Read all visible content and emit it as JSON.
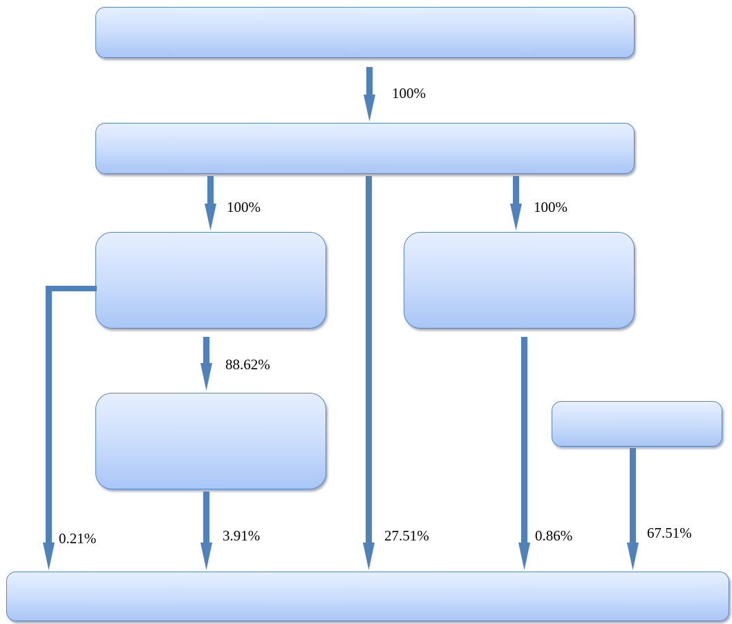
{
  "diagram": {
    "boxes": {
      "top": "",
      "second": "",
      "mid_left": "",
      "mid_right": "",
      "lower_left": "",
      "side_right": "",
      "bottom": ""
    },
    "labels": {
      "top_to_second": "100%",
      "second_to_mid_left": "100%",
      "second_to_mid_right": "100%",
      "mid_left_to_lower_left": "88.62%",
      "mid_left_to_bottom": "0.21%",
      "lower_left_to_bottom": "3.91%",
      "second_to_bottom": "27.51%",
      "mid_right_to_bottom": "0.86%",
      "side_right_to_bottom": "67.51%"
    },
    "colors": {
      "arrow": "#4f81bd",
      "box_border": "#5a86c0",
      "box_fill_top": "#e6efff",
      "box_fill_bottom": "#a9c6f6"
    }
  }
}
